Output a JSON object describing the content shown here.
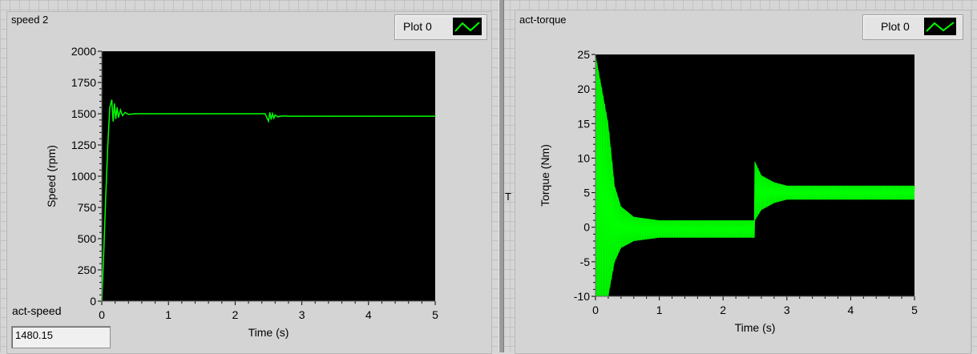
{
  "panels": {
    "left": {
      "title": "speed 2",
      "legend_label": "Plot 0",
      "readout_label": "act-speed",
      "readout_value": "1480.15"
    },
    "right": {
      "title": "act-torque",
      "legend_label": "Plot 0"
    }
  },
  "stray_text": "T",
  "colors": {
    "plot_bg": "#000000",
    "trace": "#00ff00",
    "panel_bg": "#d4d4d4"
  },
  "icons": {
    "legend_plot": "line-plot-swatch-icon"
  },
  "chart_data": [
    {
      "type": "line",
      "title": "speed 2",
      "xlabel": "Time (s)",
      "ylabel": "Speed (rpm)",
      "xlim": [
        0,
        5
      ],
      "ylim": [
        0,
        2000
      ],
      "x_ticks": [
        0,
        1,
        2,
        3,
        4,
        5
      ],
      "y_ticks": [
        0,
        250,
        500,
        750,
        1000,
        1250,
        1500,
        1750,
        2000
      ],
      "legend": "top-right",
      "series": [
        {
          "name": "Plot 0",
          "color": "#00ff00",
          "x": [
            0,
            0.03,
            0.06,
            0.09,
            0.12,
            0.15,
            0.17,
            0.19,
            0.21,
            0.23,
            0.25,
            0.28,
            0.31,
            0.35,
            0.4,
            0.5,
            0.7,
            1.0,
            1.5,
            2.0,
            2.45,
            2.5,
            2.52,
            2.54,
            2.56,
            2.58,
            2.6,
            2.64,
            2.7,
            2.8,
            3.0,
            3.5,
            4.0,
            4.5,
            5.0
          ],
          "y": [
            0,
            400,
            850,
            1250,
            1550,
            1610,
            1440,
            1580,
            1460,
            1550,
            1470,
            1530,
            1485,
            1510,
            1495,
            1500,
            1500,
            1500,
            1500,
            1500,
            1500,
            1440,
            1510,
            1455,
            1500,
            1465,
            1490,
            1475,
            1482,
            1480,
            1480,
            1480,
            1480,
            1480,
            1480
          ]
        }
      ]
    },
    {
      "type": "line",
      "title": "act-torque",
      "xlabel": "Time (s)",
      "ylabel": "Torque  (Nm)",
      "xlim": [
        0,
        5
      ],
      "ylim": [
        -10,
        25
      ],
      "x_ticks": [
        0,
        1,
        2,
        3,
        4,
        5
      ],
      "y_ticks": [
        -10,
        -5,
        0,
        5,
        10,
        15,
        20,
        25
      ],
      "legend": "top-right",
      "series": [
        {
          "name": "Plot 0",
          "color": "#00ff00",
          "envelope": [
            {
              "t": 0.0,
              "lo": -10,
              "hi": 25
            },
            {
              "t": 0.1,
              "lo": -10,
              "hi": 20
            },
            {
              "t": 0.2,
              "lo": -10,
              "hi": 15
            },
            {
              "t": 0.3,
              "lo": -5,
              "hi": 6
            },
            {
              "t": 0.4,
              "lo": -3,
              "hi": 3
            },
            {
              "t": 0.6,
              "lo": -2,
              "hi": 1.5
            },
            {
              "t": 1.0,
              "lo": -1.5,
              "hi": 1
            },
            {
              "t": 2.49,
              "lo": -1.5,
              "hi": 1
            },
            {
              "t": 2.5,
              "lo": 1,
              "hi": 9.5
            },
            {
              "t": 2.6,
              "lo": 2.5,
              "hi": 7.5
            },
            {
              "t": 2.8,
              "lo": 3.5,
              "hi": 6.5
            },
            {
              "t": 3.0,
              "lo": 4,
              "hi": 6
            },
            {
              "t": 5.0,
              "lo": 4,
              "hi": 6
            }
          ]
        }
      ]
    }
  ]
}
